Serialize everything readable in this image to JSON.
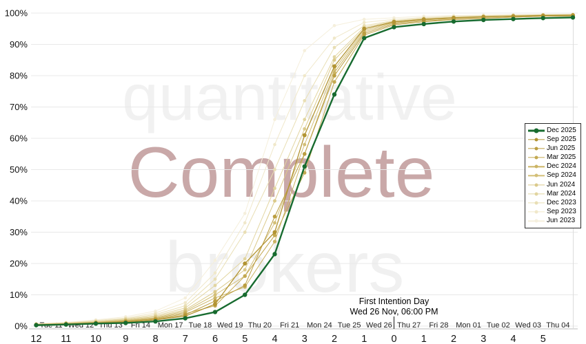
{
  "watermarks": {
    "line1": "quantitative",
    "line2": "Complete",
    "line3": "brokers",
    "line1_color": "#f1f1f1",
    "line2_color": "#c9a8a8",
    "line3_color": "#f0f0f0"
  },
  "annotation": {
    "title": "First Intention Day",
    "subtitle": "Wed 26 Nov, 06:00 PM"
  },
  "legend": {
    "position": "right",
    "entries": [
      {
        "label": "Dec 2025",
        "color": "#176b2f",
        "thick": true
      },
      {
        "label": "Sep 2025",
        "color": "#b29433",
        "thick": false
      },
      {
        "label": "Jun 2025",
        "color": "#bb9e41",
        "thick": false
      },
      {
        "label": "Mar 2025",
        "color": "#c3a951",
        "thick": false
      },
      {
        "label": "Dec 2024",
        "color": "#cbb464",
        "thick": false
      },
      {
        "label": "Sep 2024",
        "color": "#d3bf77",
        "thick": false
      },
      {
        "label": "Jun 2024",
        "color": "#dbca8b",
        "thick": false
      },
      {
        "label": "Mar 2024",
        "color": "#e2d5a0",
        "thick": false
      },
      {
        "label": "Dec 2023",
        "color": "#e9dfb5",
        "thick": false
      },
      {
        "label": "Sep 2023",
        "color": "#f0e8ca",
        "thick": false
      },
      {
        "label": "Jun 2023",
        "color": "#f5efdc",
        "thick": false
      }
    ]
  },
  "chart_data": {
    "type": "line",
    "title": "",
    "xlabel": "",
    "ylabel": "",
    "ylim": [
      0,
      100
    ],
    "yticks_percent": [
      0,
      10,
      20,
      30,
      40,
      50,
      60,
      70,
      80,
      90,
      100
    ],
    "grid": "horizontal",
    "legend_position": "right",
    "x_axis": {
      "day_labels": [
        "Tue 11",
        "Wed 12",
        "Thu 13",
        "Fri 14",
        "Mon 17",
        "Tue 18",
        "Wed 19",
        "Thu 20",
        "Fri 21",
        "Mon 24",
        "Tue 25",
        "Wed 26",
        "Thu 27",
        "Fri 28",
        "Mon 01",
        "Tue 02",
        "Wed 03",
        "Thu 04"
      ],
      "count_labels": [
        "12",
        "11",
        "10",
        "9",
        "8",
        "7",
        "6",
        "5",
        "4",
        "3",
        "2",
        "1",
        "0",
        "1",
        "2",
        "3",
        "4",
        "5"
      ],
      "first_intention_tick": "0",
      "extra_unlabeled_point": true
    },
    "series": [
      {
        "name": "Dec 2025",
        "color": "#176b2f",
        "width": 2.4,
        "marker_r": 3.2,
        "values": [
          0.3,
          0.5,
          0.8,
          1.0,
          1.5,
          2.5,
          4.5,
          10,
          23,
          51,
          74,
          92,
          95.5,
          96.5,
          97.3,
          97.8,
          98.1,
          98.4,
          98.6
        ]
      },
      {
        "name": "Sep 2025",
        "color": "#b29433",
        "width": 1.3,
        "marker_r": 3.0,
        "values": [
          0.4,
          0.6,
          0.9,
          1.3,
          2.0,
          3.2,
          7.0,
          20,
          30,
          61,
          83,
          95,
          97.2,
          98.0,
          98.5,
          98.8,
          99.0,
          99.2,
          99.3
        ]
      },
      {
        "name": "Jun 2025",
        "color": "#bb9e41",
        "width": 1.0,
        "marker_r": 2.8,
        "values": [
          0.4,
          0.7,
          1.0,
          1.4,
          2.1,
          3.6,
          8.0,
          13,
          35,
          55,
          80,
          93.5,
          96.5,
          97.5,
          98.0,
          98.4,
          98.7,
          99.0,
          99.1
        ]
      },
      {
        "name": "Mar 2025",
        "color": "#c3a951",
        "width": 1.0,
        "marker_r": 2.7,
        "values": [
          0.5,
          0.7,
          1.1,
          1.6,
          2.3,
          4.0,
          6.5,
          16,
          29,
          49,
          78,
          93,
          96.2,
          97.2,
          97.9,
          98.3,
          98.7,
          99.0,
          99.1
        ]
      },
      {
        "name": "Dec 2024",
        "color": "#cbb464",
        "width": 1.0,
        "marker_r": 2.6,
        "values": [
          0.5,
          0.8,
          1.2,
          1.7,
          2.5,
          4.4,
          9.0,
          12.5,
          27,
          55,
          81,
          94,
          96.8,
          97.8,
          98.3,
          98.7,
          99.0,
          99.2,
          99.3
        ]
      },
      {
        "name": "Sep 2024",
        "color": "#d3bf77",
        "width": 1.0,
        "marker_r": 2.5,
        "values": [
          0.5,
          0.8,
          1.2,
          1.8,
          2.7,
          4.8,
          10,
          16,
          33,
          58,
          82,
          94.5,
          97.0,
          98.0,
          98.4,
          98.8,
          99.1,
          99.3,
          99.4
        ]
      },
      {
        "name": "Jun 2024",
        "color": "#dbca8b",
        "width": 1.0,
        "marker_r": 2.5,
        "values": [
          0.6,
          0.9,
          1.3,
          2.0,
          3.0,
          5.2,
          11,
          18,
          40,
          63,
          85,
          95,
          97.2,
          98.1,
          98.5,
          98.9,
          99.1,
          99.3,
          99.4
        ]
      },
      {
        "name": "Mar 2024",
        "color": "#e2d5a0",
        "width": 1.0,
        "marker_r": 2.4,
        "values": [
          0.6,
          1.0,
          1.5,
          2.2,
          3.3,
          5.8,
          13,
          21.5,
          44,
          66,
          86,
          95.5,
          97.4,
          98.2,
          98.6,
          99.0,
          99.2,
          99.4,
          99.5
        ]
      },
      {
        "name": "Dec 2023",
        "color": "#e9dfb5",
        "width": 1.0,
        "marker_r": 2.4,
        "values": [
          0.7,
          1.0,
          1.6,
          2.4,
          3.7,
          6.5,
          15,
          30,
          50,
          72,
          89,
          96,
          97.6,
          98.4,
          98.8,
          99.1,
          99.3,
          99.5,
          99.5
        ]
      },
      {
        "name": "Sep 2023",
        "color": "#f0e8ca",
        "width": 1.0,
        "marker_r": 2.3,
        "values": [
          0.7,
          1.1,
          1.8,
          2.6,
          4.2,
          7.5,
          17,
          33,
          58,
          80,
          92,
          97,
          98.0,
          98.6,
          99.0,
          99.2,
          99.4,
          99.5,
          99.6
        ]
      },
      {
        "name": "Jun 2023",
        "color": "#f5efdc",
        "width": 1.0,
        "marker_r": 2.3,
        "values": [
          0.8,
          1.2,
          2.0,
          3.0,
          4.8,
          9.0,
          21,
          36,
          66,
          88,
          96,
          98,
          98.5,
          99.0,
          99.2,
          99.4,
          99.5,
          99.6,
          99.7
        ]
      }
    ]
  }
}
